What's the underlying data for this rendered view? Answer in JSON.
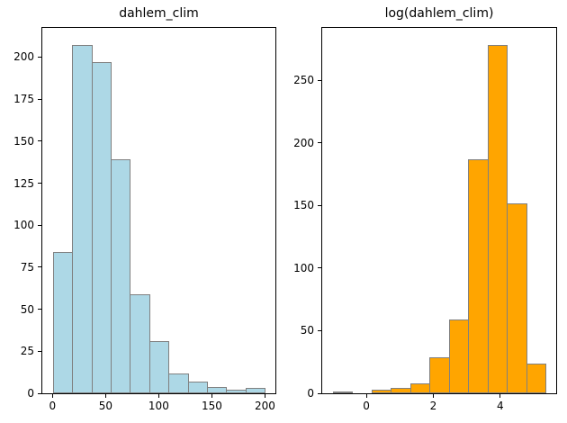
{
  "figure": {
    "background": "#ffffff",
    "frame_color": "#000000",
    "tick_color": "#000000"
  },
  "chart_data": [
    {
      "type": "bar",
      "subtype": "histogram",
      "title": "dahlem_clim",
      "bar_color": "#ADD8E6",
      "edge_color": "#808080",
      "bin_edges": [
        0.4,
        18.53,
        36.65,
        54.78,
        72.91,
        91.04,
        109.16,
        127.29,
        145.42,
        163.54,
        181.67,
        199.8
      ],
      "counts": [
        84,
        207,
        197,
        139,
        59,
        31,
        12,
        7,
        4,
        2,
        3
      ],
      "xticks": [
        0,
        50,
        100,
        150,
        200
      ],
      "yticks": [
        0,
        25,
        50,
        75,
        100,
        125,
        150,
        175,
        200
      ],
      "xlim": [
        -9.57,
        209.77
      ],
      "ylim": [
        0,
        217.35
      ],
      "xlabel": "",
      "ylabel": "",
      "grid": false,
      "legend": null
    },
    {
      "type": "bar",
      "subtype": "histogram",
      "title": "log(dahlem_clim)",
      "bar_color": "#FFA500",
      "edge_color": "#808080",
      "bin_edges": [
        -1.0,
        -0.42,
        0.15,
        0.73,
        1.31,
        1.89,
        2.46,
        3.04,
        3.62,
        4.2,
        4.77,
        5.35
      ],
      "counts": [
        1,
        0,
        3,
        4,
        8,
        29,
        59,
        187,
        278,
        152,
        24
      ],
      "xticks": [
        0,
        2,
        4
      ],
      "yticks": [
        0,
        50,
        100,
        150,
        200,
        250
      ],
      "xlim": [
        -1.32,
        5.67
      ],
      "ylim": [
        0,
        291.9
      ],
      "xlabel": "",
      "ylabel": "",
      "grid": false,
      "legend": null
    }
  ]
}
